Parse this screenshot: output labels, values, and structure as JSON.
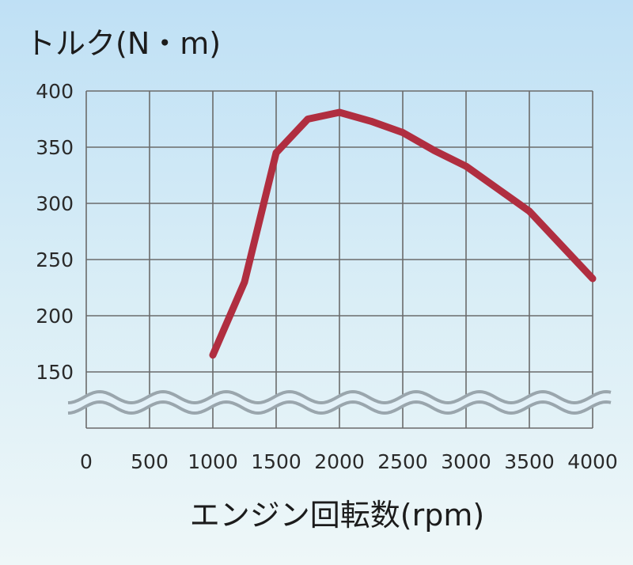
{
  "chart_data": {
    "type": "line",
    "ylabel": "トルク(N・m)",
    "xlabel": "エンジン回転数(rpm)",
    "x_ticks": [
      "0",
      "500",
      "1000",
      "1500",
      "2000",
      "2500",
      "3000",
      "3500",
      "4000"
    ],
    "y_ticks": [
      "400",
      "350",
      "300",
      "250",
      "200",
      "150"
    ],
    "xlim": [
      0,
      4000
    ],
    "ylim": [
      150,
      400
    ],
    "axis_break": "below-150",
    "grid": true,
    "series": [
      {
        "color": "#b02e40",
        "x": [
          1000,
          1250,
          1500,
          1750,
          2000,
          2250,
          2500,
          2750,
          3000,
          3250,
          3500,
          3750,
          4000
        ],
        "y": [
          165,
          230,
          345,
          375,
          381,
          373,
          363,
          347,
          333,
          313,
          293,
          263,
          233
        ]
      }
    ]
  }
}
